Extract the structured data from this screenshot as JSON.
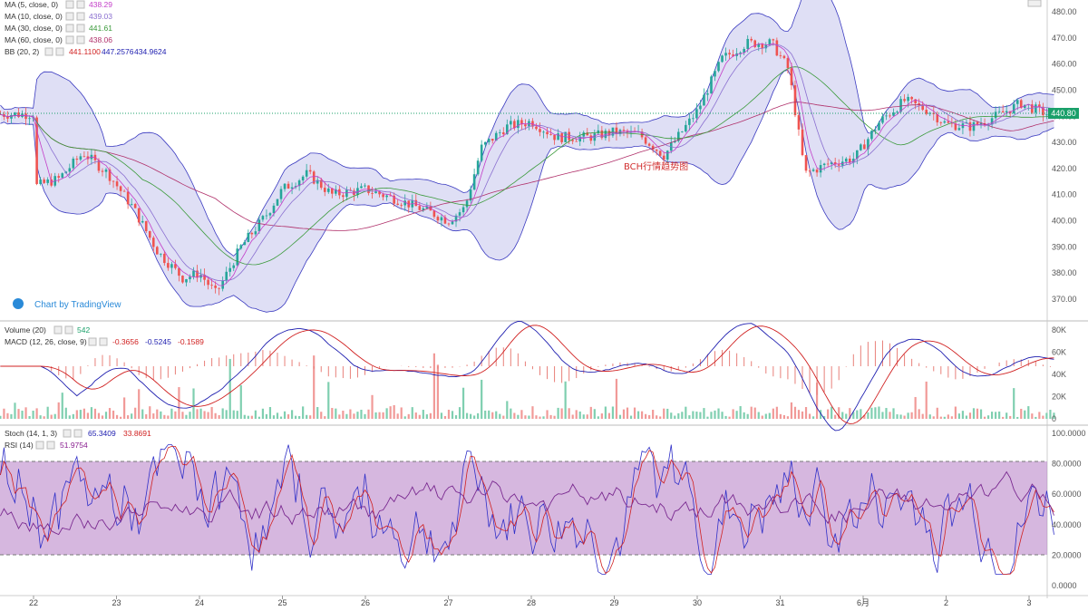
{
  "chart_data": {
    "type": "candlestick",
    "symbol": "BCH",
    "annotation": "BCH行情趋势图",
    "watermark": "Chart by TradingView",
    "last_price": "440.80",
    "price_axis": {
      "ticks": [
        "480.00",
        "470.00",
        "460.00",
        "450.00",
        "440.00",
        "430.00",
        "420.00",
        "410.00",
        "400.00",
        "390.00",
        "380.00",
        "370.00"
      ],
      "ylim": [
        366,
        483
      ]
    },
    "date_ticks": [
      "22",
      "23",
      "24",
      "25",
      "26",
      "27",
      "28",
      "29",
      "30",
      "31",
      "6月",
      "2",
      "3"
    ],
    "indicators": {
      "ma5": {
        "label": "MA (5, close, 0)",
        "value": "438.29",
        "color": "#c33ec8"
      },
      "ma10": {
        "label": "MA (10, close, 0)",
        "value": "439.03",
        "color": "#8a6fd0"
      },
      "ma30": {
        "label": "MA (30, close, 0)",
        "value": "441.61",
        "color": "#3a9a3a"
      },
      "ma60": {
        "label": "MA (60, close, 0)",
        "value": "438.06",
        "color": "#b0306a"
      },
      "bb": {
        "label": "BB (20, 2)",
        "values": [
          "441.1100",
          "447.2576",
          "434.9624"
        ],
        "colors": [
          "#d02020",
          "#2020b0",
          "#2020b0"
        ]
      }
    },
    "volume": {
      "label": "Volume (20)",
      "value": "542",
      "ticks": [
        "80K",
        "60K",
        "40K",
        "20K",
        "0"
      ]
    },
    "macd": {
      "label": "MACD (12, 26, close, 9)",
      "values": [
        "-0.3656",
        "-0.5245",
        "-0.1589"
      ],
      "colors": [
        "#d02020",
        "#2020b0",
        "#d02020"
      ]
    },
    "stoch": {
      "label": "Stoch (14, 1, 3)",
      "values": [
        "65.3409",
        "33.8691"
      ],
      "colors": [
        "#2020b0",
        "#d02020"
      ]
    },
    "rsi": {
      "label": "RSI (14)",
      "value": "51.9754",
      "ticks": [
        "100.0000",
        "80.0000",
        "60.0000",
        "40.0000",
        "20.0000",
        "0.0000"
      ]
    },
    "price_path": [
      [
        0,
        413
      ],
      [
        0.3,
        416
      ],
      [
        0.6,
        426
      ],
      [
        0.9,
        418
      ],
      [
        1.2,
        405
      ],
      [
        1.5,
        388
      ],
      [
        1.8,
        378
      ],
      [
        2.0,
        380
      ],
      [
        2.2,
        372
      ],
      [
        2.5,
        390
      ],
      [
        2.8,
        402
      ],
      [
        3.0,
        412
      ],
      [
        3.3,
        418
      ],
      [
        3.6,
        410
      ],
      [
        4.0,
        412
      ],
      [
        4.4,
        408
      ],
      [
        4.8,
        403
      ],
      [
        5.0,
        400
      ],
      [
        5.2,
        405
      ],
      [
        5.4,
        428
      ],
      [
        5.7,
        436
      ],
      [
        6.0,
        438
      ],
      [
        6.3,
        432
      ],
      [
        6.7,
        432
      ],
      [
        7.0,
        434
      ],
      [
        7.3,
        433
      ],
      [
        7.6,
        425
      ],
      [
        8.0,
        442
      ],
      [
        8.3,
        462
      ],
      [
        8.6,
        468
      ],
      [
        8.9,
        468
      ],
      [
        9.1,
        458
      ],
      [
        9.3,
        418
      ],
      [
        9.6,
        422
      ],
      [
        9.9,
        424
      ],
      [
        10.2,
        438
      ],
      [
        10.5,
        446
      ],
      [
        10.8,
        442
      ],
      [
        11.0,
        437
      ],
      [
        11.3,
        436
      ],
      [
        11.6,
        440
      ],
      [
        11.9,
        445
      ],
      [
        12.2,
        441
      ],
      [
        12.3,
        440.8
      ]
    ]
  }
}
